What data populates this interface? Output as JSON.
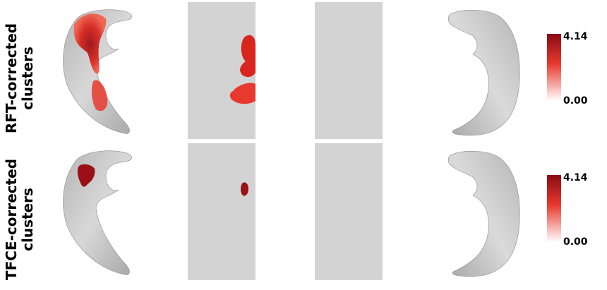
{
  "rows": [
    {
      "label_line1": "RFT-corrected",
      "label_line2": "clusters",
      "colorbar": {
        "max": "4.14",
        "min": "0.00"
      }
    },
    {
      "label_line1": "TFCE-corrected",
      "label_line2": "clusters",
      "colorbar": {
        "max": "4.14",
        "min": "0.00"
      }
    }
  ],
  "colors": {
    "surface": "#c9c9c9",
    "flat_map": "#d3d3d3",
    "cluster_high": "#8b0a14",
    "cluster_mid": "#e8392e",
    "cluster_low": "#ffffff"
  }
}
